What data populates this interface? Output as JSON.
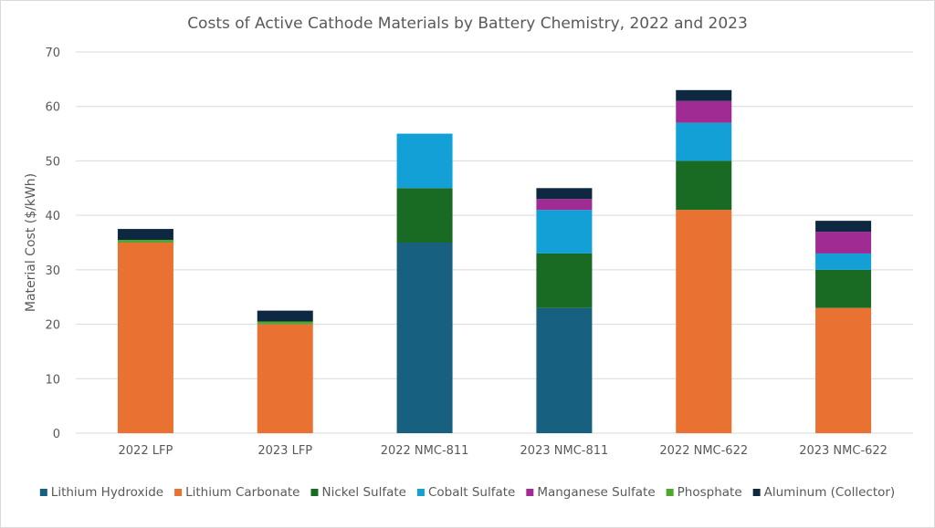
{
  "chart_data": {
    "type": "bar",
    "stacked": true,
    "title": "Costs of Active Cathode Materials by Battery Chemistry, 2022 and 2023",
    "xlabel": "",
    "ylabel": "Material Cost ($/kWh)",
    "ylim": [
      0,
      70
    ],
    "yticks": [
      0,
      10,
      20,
      30,
      40,
      50,
      60,
      70
    ],
    "grid": true,
    "legend_position": "bottom",
    "categories": [
      "2022 LFP",
      "2023 LFP",
      "2022 NMC-811",
      "2023 NMC-811",
      "2022 NMC-622",
      "2023 NMC-622"
    ],
    "series": [
      {
        "name": "Lithium Hydroxide",
        "color": "#17607f",
        "values": [
          0,
          0,
          35,
          23,
          0,
          0
        ]
      },
      {
        "name": "Lithium Carbonate",
        "color": "#e97132",
        "values": [
          35,
          20,
          0,
          0,
          41,
          23
        ]
      },
      {
        "name": "Nickel Sulfate",
        "color": "#196b24",
        "values": [
          0,
          0,
          10,
          10,
          9,
          7
        ]
      },
      {
        "name": "Cobalt Sulfate",
        "color": "#12a0d7",
        "values": [
          0,
          0,
          10,
          8,
          7,
          3
        ]
      },
      {
        "name": "Manganese Sulfate",
        "color": "#a02b93",
        "values": [
          0,
          0,
          0,
          2,
          4,
          4
        ]
      },
      {
        "name": "Phosphate",
        "color": "#4ea72e",
        "values": [
          0.5,
          0.5,
          0,
          0,
          0,
          0
        ]
      },
      {
        "name": "Aluminum (Collector)",
        "color": "#0e2841",
        "values": [
          2,
          2,
          0,
          2,
          2,
          2
        ]
      }
    ]
  }
}
